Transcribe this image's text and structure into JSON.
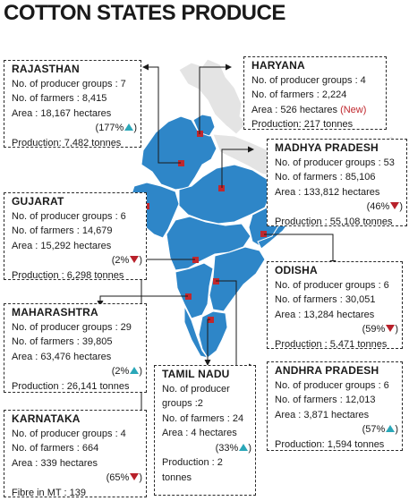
{
  "title": "COTTON STATES PRODUCE",
  "colors": {
    "highlight_state": "#2e86c8",
    "other_state": "#e4e4e4",
    "marker": "#c0282e",
    "increase": "#2aa7b8",
    "decrease": "#b8202a",
    "text": "#1a1a1a"
  },
  "states": {
    "rajasthan": {
      "name": "RAJASTHAN",
      "groups": "No. of producer groups : 7",
      "farmers": "No. of farmers : 8,415",
      "area": "Area : 18,167 hectares",
      "change": "(177%",
      "trend": "up",
      "production": "Production: 7,482 tonnes"
    },
    "haryana": {
      "name": "HARYANA",
      "groups": "No. of producer groups : 4",
      "farmers": "No. of farmers : 2,224",
      "area": "Area : 526 hectares",
      "new_tag": "(New)",
      "production": "Production: 217 tonnes"
    },
    "madhya_pradesh": {
      "name": "MADHYA PRADESH",
      "groups": "No. of producer groups : 53",
      "farmers": "No. of farmers : 85,106",
      "area": "Area : 133,812 hectares",
      "change": "(46%",
      "trend": "down",
      "production": "Production : 55,108 tonnes"
    },
    "gujarat": {
      "name": "GUJARAT",
      "groups": "No. of producer groups : 6",
      "farmers": "No. of farmers : 14,679",
      "area": "Area : 15,292 hectares",
      "change": "(2%",
      "trend": "down",
      "production": "Production : 6,298 tonnes"
    },
    "odisha": {
      "name": "ODISHA",
      "groups": "No. of producer groups : 6",
      "farmers": "No. of farmers : 30,051",
      "area": "Area : 13,284 hectares",
      "change": "(59%",
      "trend": "down",
      "production": "Production : 5,471 tonnes"
    },
    "maharashtra": {
      "name": "MAHARASHTRA",
      "groups": "No. of producer groups : 29",
      "farmers": "No. of farmers : 39,805",
      "area": "Area : 63,476 hectares",
      "change": "(2%",
      "trend": "up",
      "production": "Production : 26,141 tonnes"
    },
    "tamil_nadu": {
      "name": "TAMIL NADU",
      "groups_line1": "No. of producer",
      "groups_line2": "groups :2",
      "farmers": "No. of farmers : 24",
      "area": "Area : 4 hectares",
      "change": "(33%",
      "trend": "up",
      "production_line1": "Production : 2",
      "production_line2": "tonnes"
    },
    "andhra_pradesh": {
      "name": "ANDHRA PRADESH",
      "groups": "No. of producer groups : 6",
      "farmers": "No. of farmers : 12,013",
      "area": "Area : 3,871 hectares",
      "change": "(57%",
      "trend": "up",
      "production": "Production: 1,594 tonnes"
    },
    "karnataka": {
      "name": "KARNATAKA",
      "groups": "No. of producer groups : 4",
      "farmers": "No. of farmers : 664",
      "area": "Area : 339 hectares",
      "change": "(65%",
      "trend": "down",
      "fibre": "Fibre in MT : 139"
    }
  }
}
